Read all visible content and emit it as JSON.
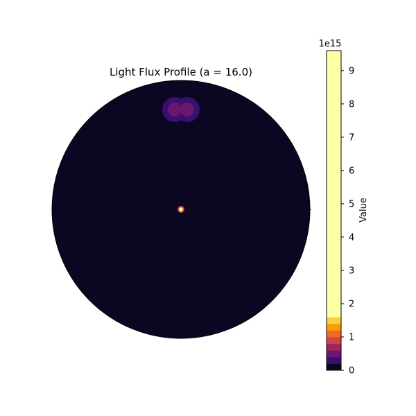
{
  "chart_data": {
    "type": "heatmap",
    "title": "Light Flux Profile (a = 16.0)",
    "projection": "polar",
    "colormap": "inferno",
    "colorbar": {
      "label": "Value",
      "exponent_label": "1e15",
      "range": [
        0,
        9.6
      ],
      "ticks": [
        0,
        1,
        2,
        3,
        4,
        5,
        6,
        7,
        8,
        9
      ],
      "tick_labels": [
        "0",
        "1",
        "2",
        "3",
        "4",
        "5",
        "6",
        "7",
        "8",
        "9"
      ],
      "levels": [
        0,
        0.2,
        0.4,
        0.6,
        0.8,
        1.0,
        1.2,
        1.4,
        1.6,
        9.6
      ],
      "level_colors": [
        "#0b0622",
        "#3b0f70",
        "#6b176e",
        "#a0255f",
        "#cf4446",
        "#ed6925",
        "#fb9b06",
        "#f7d13d",
        "#fcffa4"
      ]
    },
    "features": {
      "background_level_color": "#0b0622",
      "central_source": {
        "description": "bright point source at center",
        "outer_color": "#cf4446",
        "inner_color": "#fcffa4"
      },
      "lobes": {
        "count": 2,
        "outer_color": "#3b0f70",
        "inner_color": "#6b176e"
      }
    }
  }
}
